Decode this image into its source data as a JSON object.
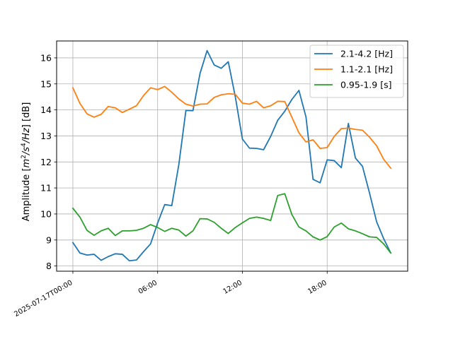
{
  "chart_data": {
    "type": "line",
    "title": "",
    "xlabel": "",
    "ylabel": "Amplitude [m²/s⁴/Hz] [dB]",
    "ylabel_parts": {
      "prefix": "Amplitude [",
      "m": "m",
      "s": "/s",
      "hz": "/Hz",
      "suffix": "] [dB]",
      "sup2": "2",
      "sup4": "4"
    },
    "x_hours": [
      0,
      0.5,
      1,
      1.5,
      2,
      2.5,
      3,
      3.5,
      4,
      4.5,
      5,
      5.5,
      6,
      6.5,
      7,
      7.5,
      8,
      8.5,
      9,
      9.5,
      10,
      10.5,
      11,
      11.5,
      12,
      12.5,
      13,
      13.5,
      14,
      14.5,
      15,
      15.5,
      16,
      16.5,
      17,
      17.5,
      18,
      18.5,
      19,
      19.5,
      20,
      20.5,
      21,
      21.5,
      22,
      22.5
    ],
    "xlim_hours": [
      -1.15,
      23.7
    ],
    "ylim": [
      7.8,
      16.65
    ],
    "xticks": [
      {
        "hour": 0,
        "label": "2025-07-17T00:00"
      },
      {
        "hour": 6,
        "label": "06:00"
      },
      {
        "hour": 12,
        "label": "12:00"
      },
      {
        "hour": 18,
        "label": "18:00"
      }
    ],
    "yticks": [
      {
        "value": 8,
        "label": "8"
      },
      {
        "value": 9,
        "label": "9"
      },
      {
        "value": 10,
        "label": "10"
      },
      {
        "value": 11,
        "label": "11"
      },
      {
        "value": 12,
        "label": "12"
      },
      {
        "value": 13,
        "label": "13"
      },
      {
        "value": 14,
        "label": "14"
      },
      {
        "value": 15,
        "label": "15"
      },
      {
        "value": 16,
        "label": "16"
      }
    ],
    "grid": true,
    "legend_position": "top-right",
    "series": [
      {
        "name": "2.1-4.2 [Hz]",
        "color": "#1f77b4",
        "values": [
          8.9,
          8.5,
          8.42,
          8.45,
          8.22,
          8.36,
          8.47,
          8.45,
          8.2,
          8.23,
          8.55,
          8.85,
          9.65,
          10.36,
          10.32,
          11.9,
          13.98,
          13.97,
          15.4,
          16.28,
          15.73,
          15.6,
          15.85,
          14.5,
          12.88,
          12.53,
          12.52,
          12.47,
          12.98,
          13.6,
          13.95,
          14.4,
          14.75,
          13.73,
          11.33,
          11.2,
          12.08,
          12.05,
          11.78,
          13.48,
          12.15,
          11.83,
          10.8,
          9.7,
          9.05,
          8.5
        ]
      },
      {
        "name": "1.1-2.1 [Hz]",
        "color": "#ff7f0e",
        "values": [
          14.85,
          14.25,
          13.85,
          13.72,
          13.83,
          14.13,
          14.08,
          13.9,
          14.03,
          14.16,
          14.55,
          14.85,
          14.78,
          14.9,
          14.68,
          14.42,
          14.22,
          14.15,
          14.22,
          14.23,
          14.48,
          14.58,
          14.62,
          14.6,
          14.26,
          14.22,
          14.33,
          14.08,
          14.16,
          14.33,
          14.32,
          13.72,
          13.12,
          12.77,
          12.85,
          12.52,
          12.55,
          12.98,
          13.28,
          13.3,
          13.25,
          13.22,
          12.95,
          12.62,
          12.1,
          11.76
        ]
      },
      {
        "name": "0.95-1.9 [s]",
        "color": "#2ca02c",
        "values": [
          10.22,
          9.88,
          9.37,
          9.18,
          9.35,
          9.45,
          9.17,
          9.35,
          9.35,
          9.37,
          9.45,
          9.59,
          9.48,
          9.33,
          9.45,
          9.38,
          9.15,
          9.35,
          9.82,
          9.81,
          9.68,
          9.45,
          9.25,
          9.48,
          9.66,
          9.83,
          9.88,
          9.83,
          9.75,
          10.71,
          10.78,
          9.98,
          9.5,
          9.35,
          9.12,
          9.0,
          9.13,
          9.5,
          9.65,
          9.43,
          9.35,
          9.24,
          9.12,
          9.1,
          8.85,
          8.5
        ]
      }
    ]
  }
}
